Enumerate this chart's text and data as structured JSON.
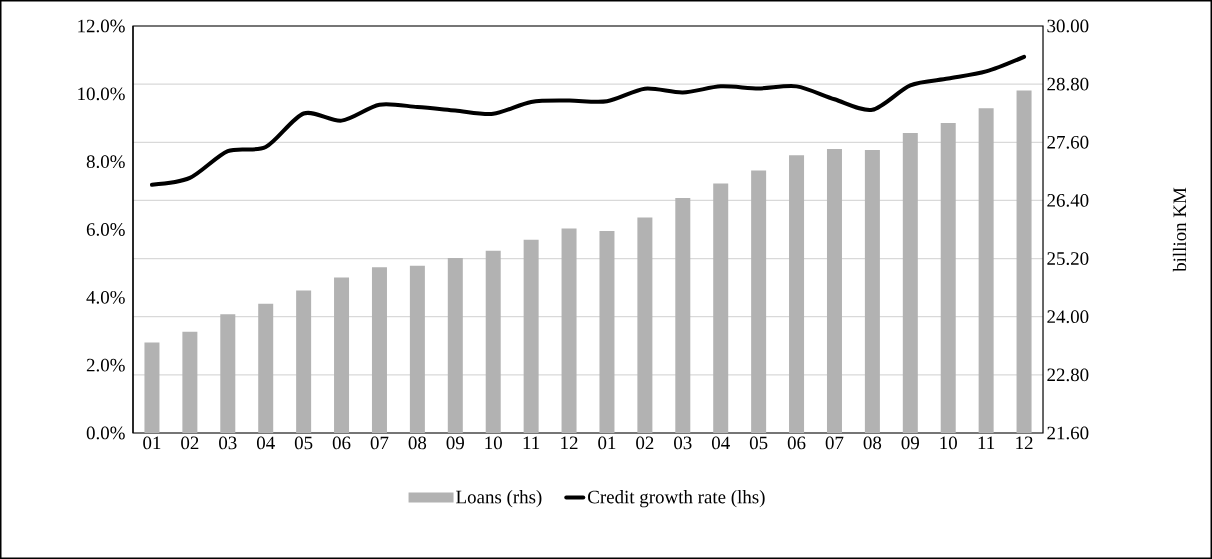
{
  "chart_data": {
    "type": "bar",
    "categories": [
      "01",
      "02",
      "03",
      "04",
      "05",
      "06",
      "07",
      "08",
      "09",
      "10",
      "11",
      "12",
      "01",
      "02",
      "03",
      "04",
      "05",
      "06",
      "07",
      "08",
      "09",
      "10",
      "11",
      "12"
    ],
    "series": [
      {
        "name": "Loans (rhs)",
        "axis": "y2",
        "color": "#b2b2b2",
        "values": [
          23.47,
          23.69,
          24.05,
          24.27,
          24.54,
          24.81,
          25.02,
          25.05,
          25.21,
          25.36,
          25.59,
          25.82,
          25.77,
          26.05,
          26.45,
          26.75,
          27.02,
          27.33,
          27.46,
          27.44,
          27.79,
          28.0,
          28.3,
          28.67
        ]
      },
      {
        "name": "Credit growth rate (lhs)",
        "type": "line",
        "color": "#000000",
        "values": [
          7.32,
          7.52,
          8.31,
          8.43,
          9.42,
          9.21,
          9.68,
          9.61,
          9.51,
          9.41,
          9.76,
          9.8,
          9.78,
          10.15,
          10.04,
          10.22,
          10.16,
          10.22,
          9.84,
          9.53,
          10.25,
          10.45,
          10.66,
          11.09
        ]
      }
    ],
    "ylim": [
      0,
      12
    ],
    "yticks": [
      {
        "value": 0,
        "label": "0.0%"
      },
      {
        "value": 2,
        "label": "2.0%"
      },
      {
        "value": 4,
        "label": "4.0%"
      },
      {
        "value": 6,
        "label": "6.0%"
      },
      {
        "value": 8,
        "label": "8.0%"
      },
      {
        "value": 10,
        "label": "10.0%"
      },
      {
        "value": 12,
        "label": "12.0%"
      }
    ],
    "y2lim": [
      21.6,
      30
    ],
    "y2ticks": [
      {
        "value": 21.6,
        "label": "21.60"
      },
      {
        "value": 22.8,
        "label": "22.80"
      },
      {
        "value": 24,
        "label": "24.00"
      },
      {
        "value": 25.2,
        "label": "25.20"
      },
      {
        "value": 26.4,
        "label": "26.40"
      },
      {
        "value": 27.6,
        "label": "27.60"
      },
      {
        "value": 28.8,
        "label": "28.80"
      },
      {
        "value": 30,
        "label": "30.00"
      }
    ],
    "y2label": "billion KM",
    "grid": "y",
    "legend": "bottom",
    "line_style": "solid"
  }
}
